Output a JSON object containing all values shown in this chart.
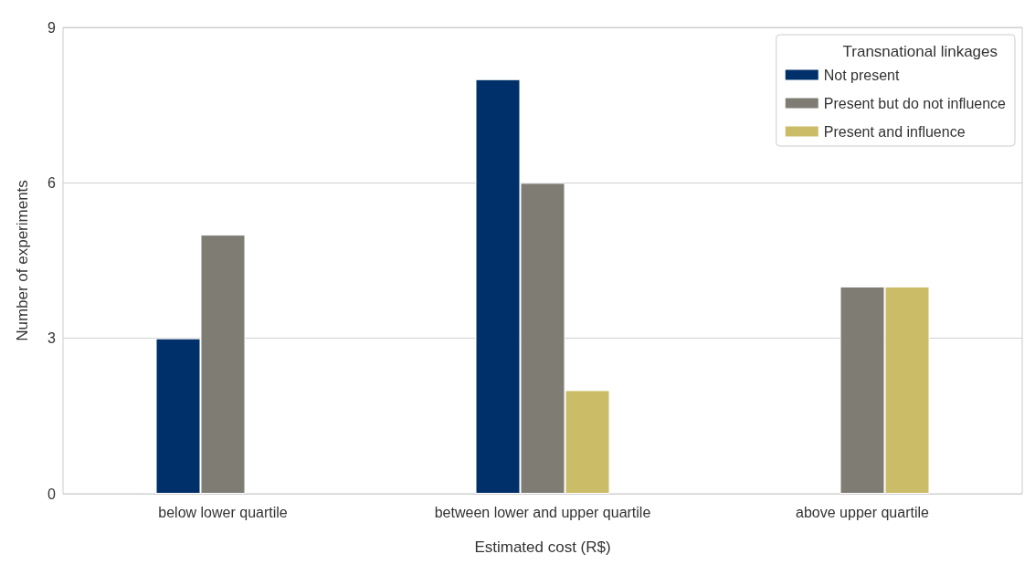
{
  "chart_data": {
    "type": "bar",
    "xlabel": "Estimated cost (R$)",
    "ylabel": "Number of experiments",
    "legend_title": "Transnational linkages",
    "categories": [
      "below lower quartile",
      "between lower and upper quartile",
      "above upper quartile"
    ],
    "series": [
      {
        "name": "Not present",
        "color": "#00306a",
        "values": [
          3,
          8,
          null
        ]
      },
      {
        "name": "Present but do not influence",
        "color": "#7f7c74",
        "values": [
          5,
          6,
          4
        ]
      },
      {
        "name": "Present and influence",
        "color": "#cbbd67",
        "values": [
          null,
          2,
          4
        ]
      }
    ],
    "ylim": [
      0,
      9
    ],
    "yticks": [
      0,
      3,
      6,
      9
    ],
    "grid": "y",
    "legend": "top right"
  }
}
